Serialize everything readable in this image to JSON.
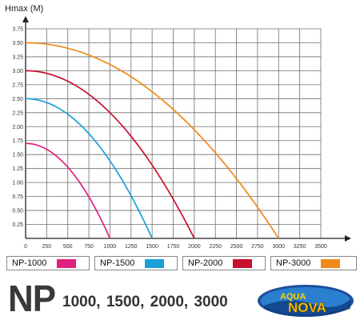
{
  "chart_data": {
    "type": "line",
    "title": "",
    "ylabel": "Hmax (M)",
    "xlabel": "",
    "xlim": [
      0,
      3500
    ],
    "ylim": [
      0,
      3.75
    ],
    "x_ticks": [
      "0",
      "250",
      "500",
      "750",
      "1000",
      "1250",
      "1500",
      "1750",
      "2000",
      "2250",
      "2500",
      "2750",
      "3000",
      "3250",
      "3500"
    ],
    "y_ticks": [
      "0.25",
      "0.50",
      "0.75",
      "1.00",
      "1.25",
      "1.50",
      "1.75",
      "2.00",
      "2.25",
      "2.50",
      "2.75",
      "3.00",
      "3.25",
      "3.50",
      "3.75"
    ],
    "grid": true,
    "legend_placement": "bottom",
    "series": [
      {
        "name": "NP-1000",
        "color": "#e0207f",
        "max_flow": 1000,
        "max_head": 1.7
      },
      {
        "name": "NP-1500",
        "color": "#1aa0d8",
        "max_flow": 1500,
        "max_head": 2.5
      },
      {
        "name": "NP-2000",
        "color": "#c8102e",
        "max_flow": 2000,
        "max_head": 3.0
      },
      {
        "name": "NP-3000",
        "color": "#ef8a1a",
        "max_flow": 3000,
        "max_head": 3.5
      }
    ]
  },
  "footer": {
    "series_name": "NP",
    "models": "1000, 1500, 2000, 3000"
  },
  "logo": {
    "line1": "AQUA",
    "line2": "NOVA"
  }
}
